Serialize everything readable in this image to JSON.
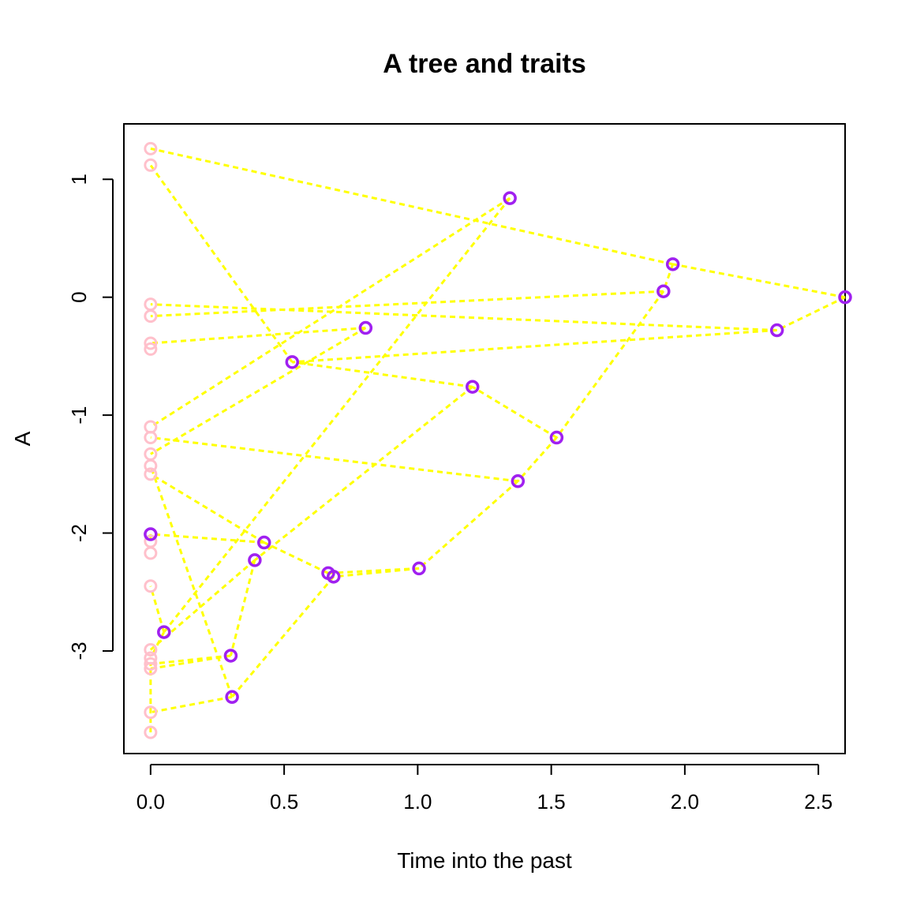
{
  "chart_data": {
    "type": "scatter",
    "title": "A tree and traits",
    "xlabel": "Time into the past",
    "ylabel": "A",
    "xlim": [
      -0.1,
      2.6
    ],
    "ylim": [
      -3.87,
      1.47
    ],
    "xticks": [
      0.0,
      0.5,
      1.0,
      1.5,
      2.0,
      2.5
    ],
    "xtick_labels": [
      "0.0",
      "0.5",
      "1.0",
      "1.5",
      "2.0",
      "2.5"
    ],
    "yticks": [
      -3,
      -2,
      -1,
      0,
      1
    ],
    "ytick_labels": [
      "-3",
      "-2",
      "-1",
      "0",
      "1"
    ],
    "grid": false,
    "colors": {
      "edge": "#ffff00",
      "internal_node": "#a020f0",
      "tip": "#ffc0cb",
      "axis": "#000000"
    },
    "internal_nodes": [
      {
        "id": "root",
        "x": 2.6,
        "y": 0.0
      },
      {
        "id": "n1",
        "x": 2.345,
        "y": -0.28
      },
      {
        "id": "n2",
        "x": 1.955,
        "y": 0.28
      },
      {
        "id": "n3",
        "x": 1.92,
        "y": 0.05
      },
      {
        "id": "n4",
        "x": 1.345,
        "y": 0.84
      },
      {
        "id": "n5",
        "x": 1.52,
        "y": -1.19
      },
      {
        "id": "n6",
        "x": 1.205,
        "y": -0.76
      },
      {
        "id": "n7",
        "x": 1.375,
        "y": -1.56
      },
      {
        "id": "n8",
        "x": 1.005,
        "y": -2.3
      },
      {
        "id": "n9",
        "x": 0.805,
        "y": -0.26
      },
      {
        "id": "n10",
        "x": 0.53,
        "y": -0.55
      },
      {
        "id": "n11",
        "x": 0.425,
        "y": -2.08
      },
      {
        "id": "n12",
        "x": 0.39,
        "y": -2.23
      },
      {
        "id": "n13",
        "x": 0.665,
        "y": -2.34
      },
      {
        "id": "n14",
        "x": 0.685,
        "y": -2.37
      },
      {
        "id": "n15",
        "x": 0.3,
        "y": -3.04
      },
      {
        "id": "n16",
        "x": 0.305,
        "y": -3.39
      },
      {
        "id": "n17",
        "x": 0.05,
        "y": -2.84
      },
      {
        "id": "n18",
        "x": 0.0,
        "y": -2.01
      }
    ],
    "tips": [
      {
        "id": "t1",
        "x": 0.0,
        "y": 1.26
      },
      {
        "id": "t2",
        "x": 0.0,
        "y": 1.12
      },
      {
        "id": "t3",
        "x": 0.0,
        "y": -0.06
      },
      {
        "id": "t4",
        "x": 0.0,
        "y": -0.16
      },
      {
        "id": "t5",
        "x": 0.0,
        "y": -0.39
      },
      {
        "id": "t6",
        "x": 0.0,
        "y": -0.44
      },
      {
        "id": "t7",
        "x": 0.0,
        "y": -1.1
      },
      {
        "id": "t8",
        "x": 0.0,
        "y": -1.19
      },
      {
        "id": "t9",
        "x": 0.0,
        "y": -1.33
      },
      {
        "id": "t10",
        "x": 0.0,
        "y": -1.43
      },
      {
        "id": "t11",
        "x": 0.0,
        "y": -1.5
      },
      {
        "id": "t12",
        "x": 0.0,
        "y": -2.07
      },
      {
        "id": "t13",
        "x": 0.0,
        "y": -2.17
      },
      {
        "id": "t14",
        "x": 0.0,
        "y": -2.45
      },
      {
        "id": "t15",
        "x": 0.0,
        "y": -2.99
      },
      {
        "id": "t16",
        "x": 0.0,
        "y": -3.06
      },
      {
        "id": "t17",
        "x": 0.0,
        "y": -3.11
      },
      {
        "id": "t18",
        "x": 0.0,
        "y": -3.15
      },
      {
        "id": "t19",
        "x": 0.0,
        "y": -3.52
      },
      {
        "id": "t20",
        "x": 0.0,
        "y": -3.69
      }
    ],
    "edges": [
      [
        "root",
        "n1"
      ],
      [
        "root",
        "n2"
      ],
      [
        "n2",
        "n3"
      ],
      [
        "n2",
        "t1"
      ],
      [
        "n1",
        "t3"
      ],
      [
        "n1",
        "n10"
      ],
      [
        "n3",
        "t4"
      ],
      [
        "n3",
        "n5"
      ],
      [
        "n5",
        "n6"
      ],
      [
        "n5",
        "n7"
      ],
      [
        "n6",
        "n10"
      ],
      [
        "n10",
        "t2"
      ],
      [
        "n7",
        "n8"
      ],
      [
        "n7",
        "t8"
      ],
      [
        "n8",
        "n13"
      ],
      [
        "n8",
        "n14"
      ],
      [
        "n13",
        "n11"
      ],
      [
        "n14",
        "n16"
      ],
      [
        "n4",
        "t7"
      ],
      [
        "n4",
        "n17"
      ],
      [
        "n9",
        "t5"
      ],
      [
        "n9",
        "t9"
      ],
      [
        "n6",
        "n12"
      ],
      [
        "n11",
        "t11"
      ],
      [
        "n11",
        "n18"
      ],
      [
        "n12",
        "n15"
      ],
      [
        "n12",
        "t15"
      ],
      [
        "n15",
        "t17"
      ],
      [
        "n15",
        "t18"
      ],
      [
        "n16",
        "t19"
      ],
      [
        "n16",
        "t10"
      ],
      [
        "n17",
        "t14"
      ],
      [
        "n17",
        "t16"
      ],
      [
        "n18",
        "t12"
      ],
      [
        "t20",
        "t17"
      ]
    ]
  }
}
